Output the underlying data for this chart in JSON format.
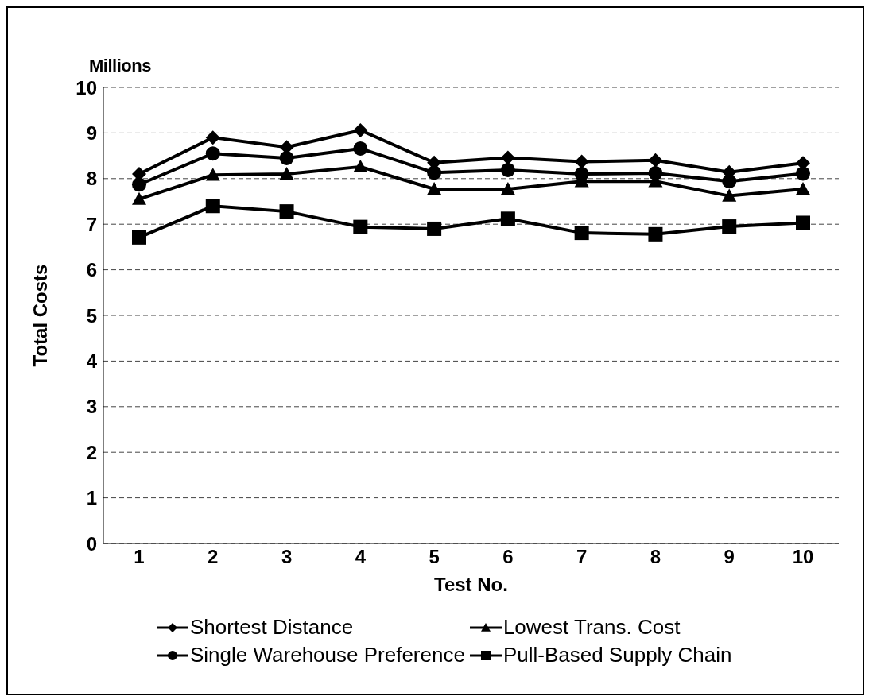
{
  "chart_data": {
    "type": "line",
    "xlabel": "Test No.",
    "ylabel": "Total Costs",
    "annotations": [
      "Millions"
    ],
    "categories": [
      "1",
      "2",
      "3",
      "4",
      "5",
      "6",
      "7",
      "8",
      "9",
      "10"
    ],
    "ylim": [
      0,
      10
    ],
    "yticks": [
      0,
      1,
      2,
      3,
      4,
      5,
      6,
      7,
      8,
      9,
      10
    ],
    "grid": "y",
    "legend": "bottom",
    "line_style": "solid",
    "series": [
      {
        "name": "Shortest Distance",
        "color": "#000000",
        "marker": "diamond",
        "values": [
          8.1,
          8.9,
          8.69,
          9.06,
          8.35,
          8.46,
          8.37,
          8.4,
          8.14,
          8.34
        ]
      },
      {
        "name": "Lowest Trans. Cost",
        "color": "#000000",
        "marker": "triangle",
        "values": [
          7.55,
          8.08,
          8.1,
          8.26,
          7.77,
          7.77,
          7.94,
          7.94,
          7.62,
          7.77
        ]
      },
      {
        "name": "Single Warehouse Preference",
        "color": "#000000",
        "marker": "circle",
        "values": [
          7.87,
          8.55,
          8.45,
          8.66,
          8.13,
          8.19,
          8.1,
          8.12,
          7.94,
          8.11
        ]
      },
      {
        "name": "Pull-Based Supply Chain",
        "color": "#000000",
        "marker": "square",
        "values": [
          6.71,
          7.4,
          7.28,
          6.94,
          6.9,
          7.12,
          6.81,
          6.78,
          6.95,
          7.03
        ]
      }
    ]
  }
}
